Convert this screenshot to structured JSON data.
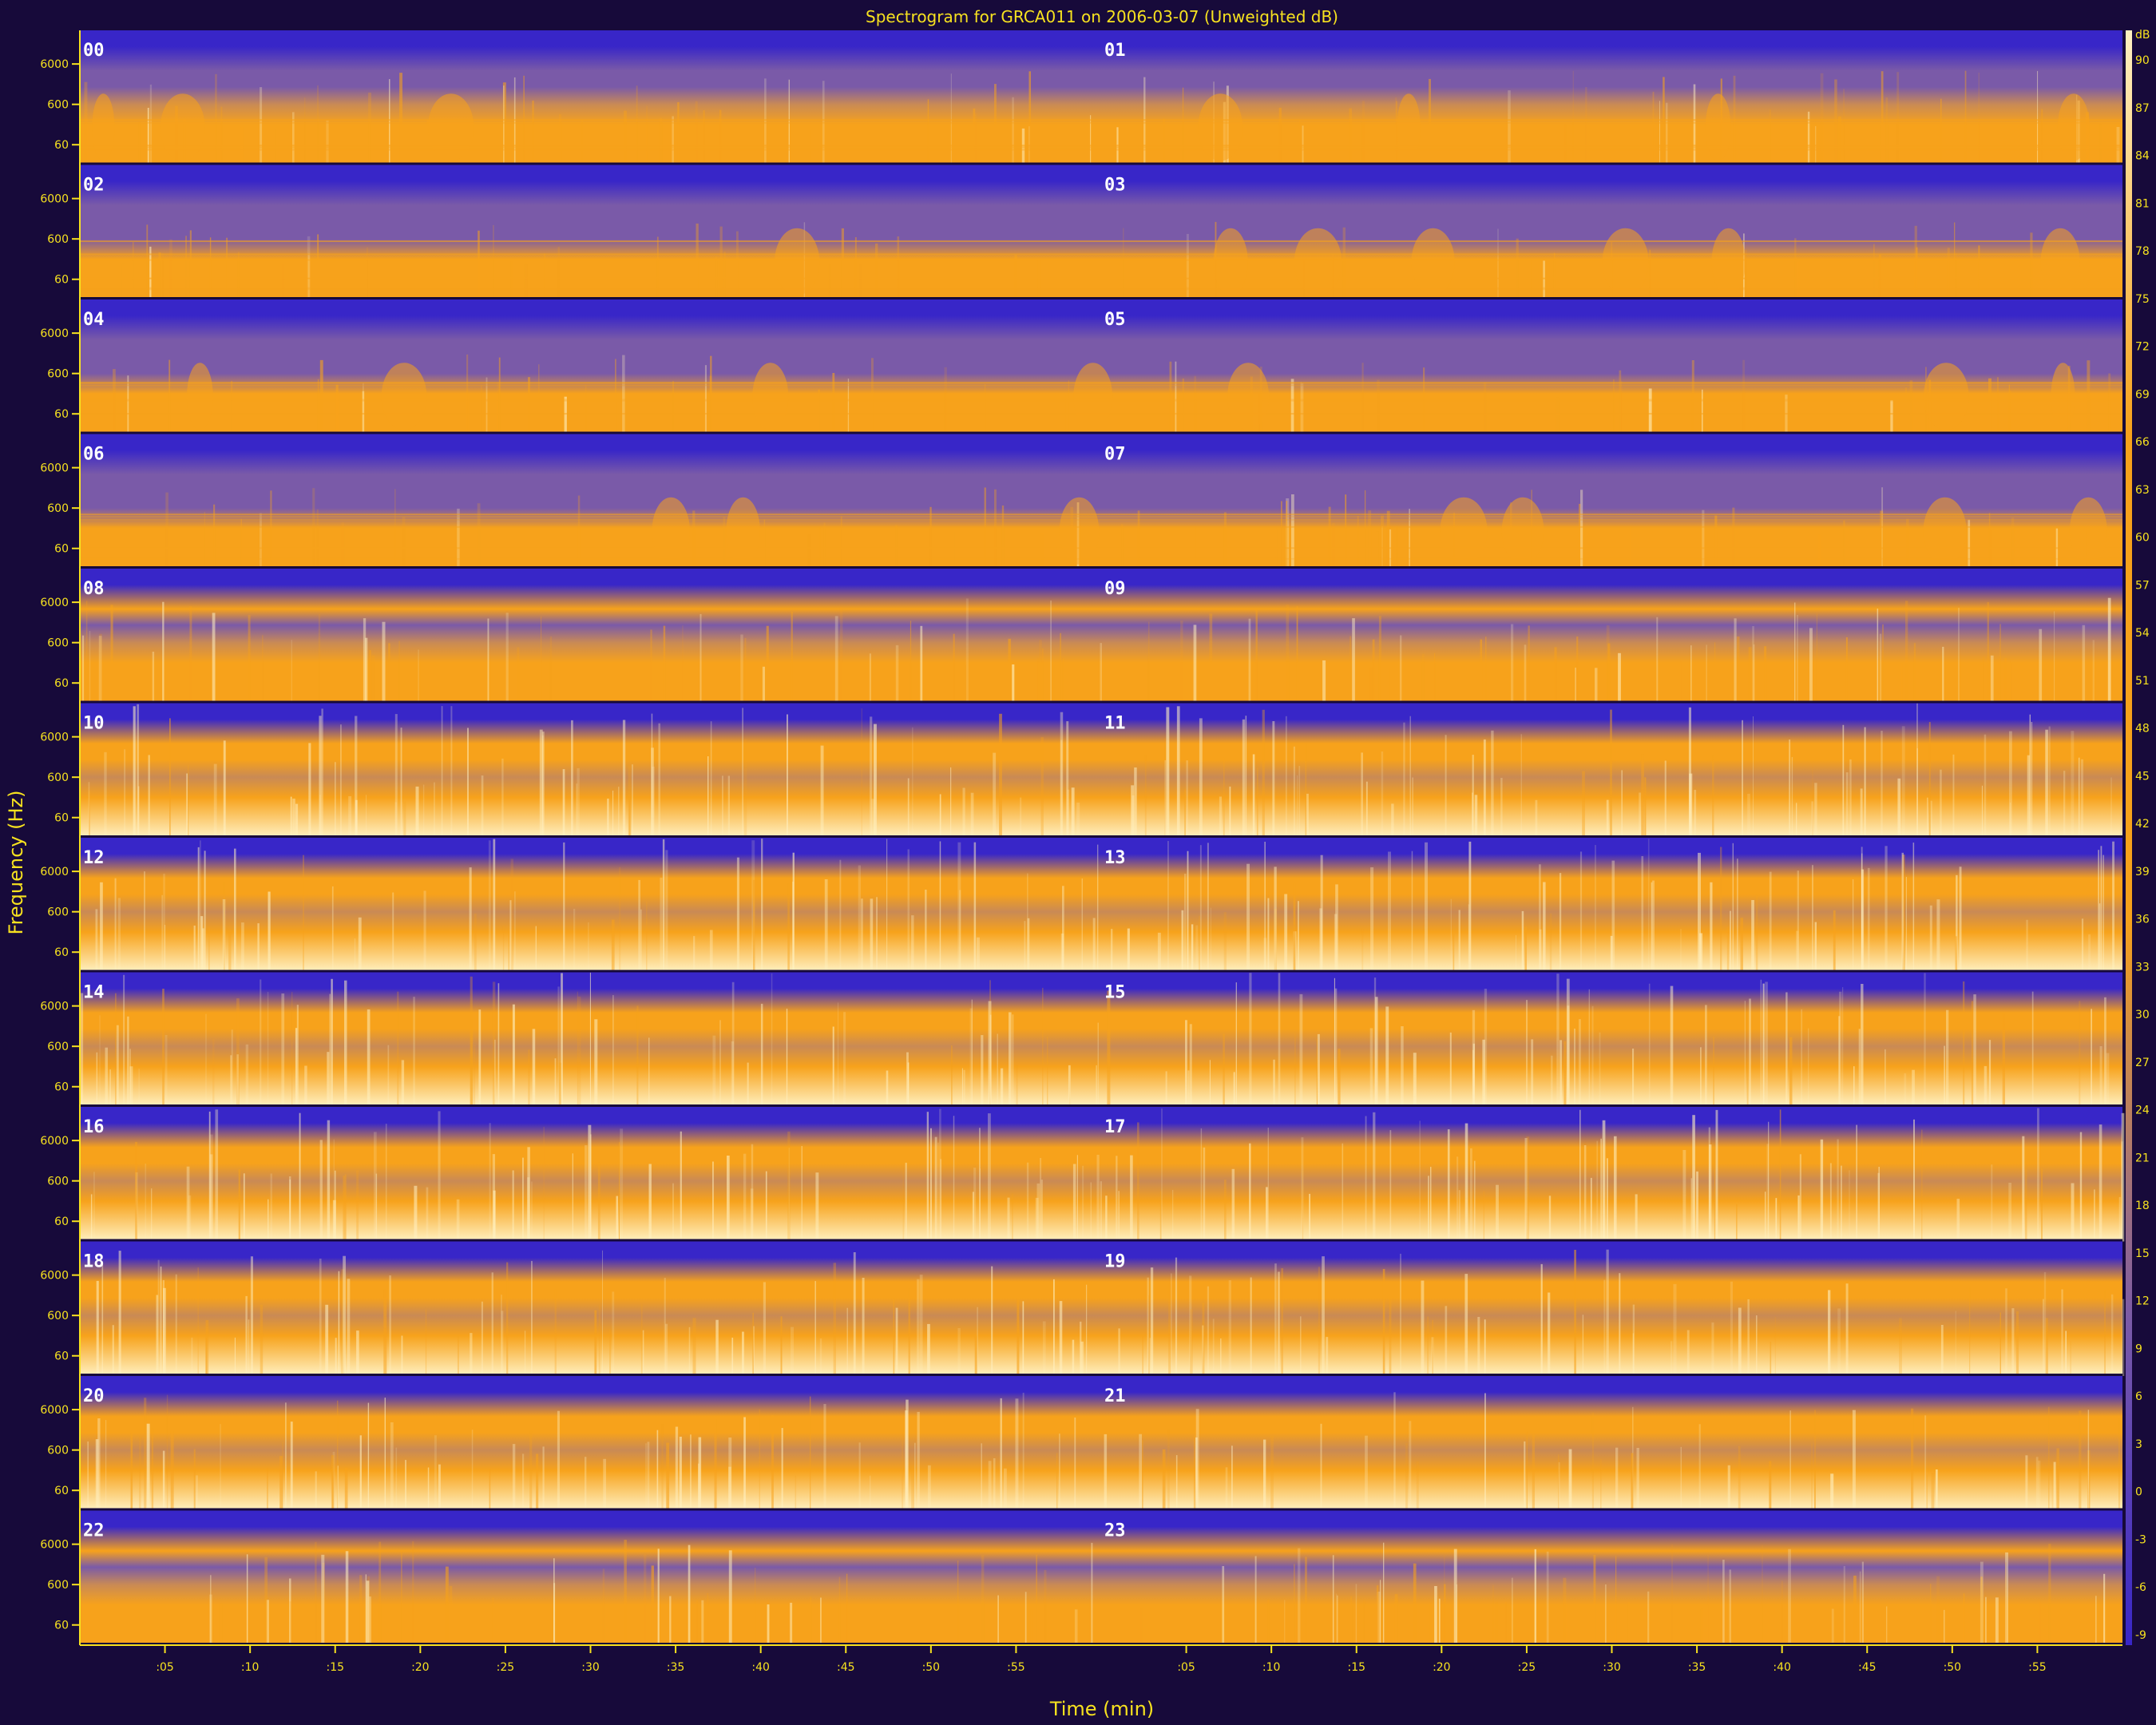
{
  "chart_data": {
    "type": "heatmap",
    "title": "Spectrogram for GRCA011 on 2006-03-07 (Unweighted dB)",
    "xlabel": "Time (min)",
    "ylabel": "Frequency (Hz)",
    "x_ticks": [
      ":05",
      ":10",
      ":15",
      ":20",
      ":25",
      ":30",
      ":35",
      ":40",
      ":45",
      ":50",
      ":55"
    ],
    "y_ticks": [
      "6000",
      "600",
      "60"
    ],
    "colorbar": {
      "unit": "dB",
      "ticks": [
        "90",
        "87",
        "84",
        "81",
        "78",
        "75",
        "72",
        "69",
        "66",
        "63",
        "60",
        "57",
        "54",
        "51",
        "48",
        "45",
        "42",
        "39",
        "36",
        "33",
        "30",
        "27",
        "24",
        "21",
        "18",
        "15",
        "12",
        "9",
        "6",
        "3",
        "0",
        "-3",
        "-6",
        "-9"
      ]
    },
    "hour_labels": [
      "00",
      "01",
      "02",
      "03",
      "04",
      "05",
      "06",
      "07",
      "08",
      "09",
      "10",
      "11",
      "12",
      "13",
      "14",
      "15",
      "16",
      "17",
      "18",
      "19",
      "20",
      "21",
      "22",
      "23"
    ],
    "row_activity": [
      {
        "hours": [
          "00",
          "01"
        ],
        "level": 0.35
      },
      {
        "hours": [
          "02",
          "03"
        ],
        "level": 0.15
      },
      {
        "hours": [
          "04",
          "05"
        ],
        "level": 0.18
      },
      {
        "hours": [
          "06",
          "07"
        ],
        "level": 0.2
      },
      {
        "hours": [
          "08",
          "09"
        ],
        "level": 0.5
      },
      {
        "hours": [
          "10",
          "11"
        ],
        "level": 0.85
      },
      {
        "hours": [
          "12",
          "13"
        ],
        "level": 0.85
      },
      {
        "hours": [
          "14",
          "15"
        ],
        "level": 0.85
      },
      {
        "hours": [
          "16",
          "17"
        ],
        "level": 0.85
      },
      {
        "hours": [
          "18",
          "19"
        ],
        "level": 0.75
      },
      {
        "hours": [
          "20",
          "21"
        ],
        "level": 0.65
      },
      {
        "hours": [
          "22",
          "23"
        ],
        "level": 0.5
      }
    ],
    "colors": {
      "background": "#170a3a",
      "low": "#3826c8",
      "mid": "#7a5aa8",
      "high": "#f7a21b",
      "peak": "#fff1c2",
      "text": "#f7e21f"
    }
  }
}
